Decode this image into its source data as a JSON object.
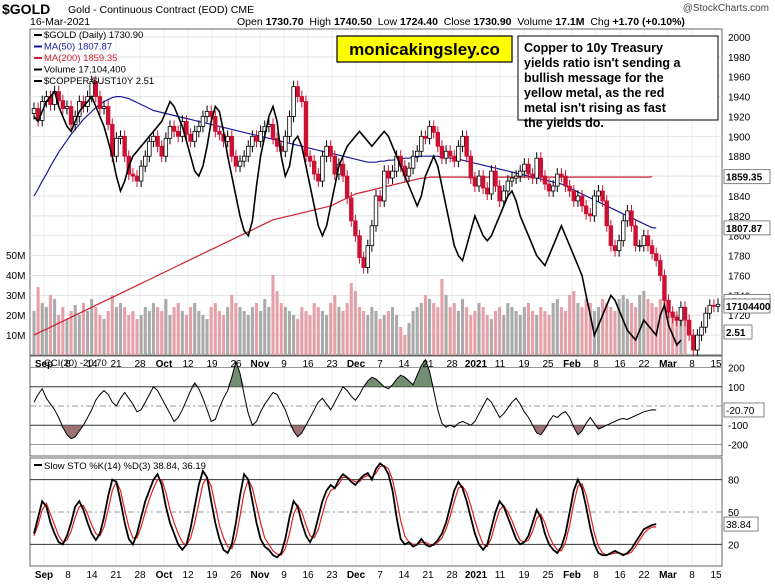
{
  "header": {
    "symbol": "$GOLD",
    "description": "Gold - Continuous Contract (EOD) CME",
    "date": "16-Mar-2021",
    "open_label": "Open",
    "open": "1730.70",
    "high_label": "High",
    "high": "1740.50",
    "low_label": "Low",
    "low": "1724.40",
    "close_label": "Close",
    "close": "1730.90",
    "vol_label": "Volume",
    "vol": "17.1M",
    "chg_label": "Chg",
    "chg": "+1.70 (+0.10%)",
    "watermark": "@StockCharts.com"
  },
  "colors": {
    "up": "#000000",
    "down": "#cc1133",
    "ma50": "#1a1a99",
    "ma200": "#cc2233",
    "ratio": "#000000",
    "vol_up": "#aaaaaa",
    "vol_down": "#e6a1a8",
    "cci_fill_pos": "#5a7a5a",
    "cci_fill_neg": "#8a5a5a",
    "sto_d": "#dd2222",
    "annot_bg": "#ffff00"
  },
  "annotation": {
    "brand": "monicakingsley.co",
    "note": "Copper to 10y Treasury yields ratio isn't sending a bullish message for the yellow metal, as the red metal isn't rising as fast the yields do."
  },
  "chart_data": [
    {
      "type": "candlestick",
      "title": "$GOLD (Daily) 1730.90",
      "legend": [
        "$GOLD (Daily) 1730.90",
        "MA(50) 1807.87",
        "MA(200) 1859.35",
        "Volume 17,104,400",
        "$COPPER:$UST10Y 2.51"
      ],
      "y_ticks": [
        1700,
        1720,
        1740,
        1760,
        1780,
        1800,
        1820,
        1840,
        1860,
        1880,
        1900,
        1920,
        1940,
        1960,
        1980,
        2000
      ],
      "ylim": [
        1680,
        2008
      ],
      "vol_ticks": [
        "10M",
        "20M",
        "30M",
        "40M",
        "50M"
      ],
      "vol_max": 50,
      "last_labels": {
        "close": "1730.90",
        "ma50": "1807.87",
        "ma200": "1859.35",
        "volume": "17104400",
        "ratio": "2.51"
      },
      "x_ticks": [
        "Sep",
        "8",
        "14",
        "21",
        "28",
        "Oct",
        "12",
        "19",
        "26",
        "Nov",
        "9",
        "16",
        "23",
        "Dec",
        "7",
        "14",
        "21",
        "28",
        "2021",
        "11",
        "19",
        "25",
        "Feb",
        "8",
        "16",
        "22",
        "Mar",
        "8",
        "15"
      ],
      "closes": [
        1928,
        1916,
        1935,
        1940,
        1932,
        1945,
        1936,
        1928,
        1930,
        1912,
        1920,
        1935,
        1930,
        1940,
        1955,
        1940,
        1928,
        1930,
        1912,
        1880,
        1898,
        1900,
        1880,
        1862,
        1860,
        1855,
        1870,
        1880,
        1895,
        1900,
        1890,
        1880,
        1898,
        1910,
        1905,
        1900,
        1915,
        1902,
        1895,
        1905,
        1910,
        1920,
        1925,
        1920,
        1905,
        1902,
        1895,
        1900,
        1880,
        1870,
        1875,
        1880,
        1890,
        1900,
        1895,
        1905,
        1910,
        1912,
        1898,
        1890,
        1885,
        1900,
        1920,
        1950,
        1940,
        1935,
        1880,
        1875,
        1862,
        1855,
        1880,
        1890,
        1880,
        1862,
        1872,
        1860,
        1838,
        1815,
        1800,
        1778,
        1768,
        1790,
        1810,
        1840,
        1835,
        1865,
        1858,
        1865,
        1880,
        1870,
        1860,
        1868,
        1880,
        1885,
        1900,
        1898,
        1910,
        1904,
        1890,
        1878,
        1885,
        1880,
        1875,
        1890,
        1900,
        1880,
        1858,
        1850,
        1860,
        1848,
        1842,
        1865,
        1850,
        1835,
        1845,
        1855,
        1858,
        1860,
        1865,
        1872,
        1862,
        1858,
        1878,
        1860,
        1852,
        1845,
        1850,
        1862,
        1860,
        1850,
        1845,
        1835,
        1840,
        1830,
        1822,
        1820,
        1840,
        1845,
        1835,
        1810,
        1790,
        1785,
        1795,
        1815,
        1825,
        1810,
        1790,
        1790,
        1800,
        1790,
        1782,
        1775,
        1760,
        1735,
        1723,
        1718,
        1715,
        1728,
        1715,
        1700,
        1685,
        1700,
        1708,
        1722,
        1730,
        1729,
        1731
      ],
      "volumes": [
        22,
        34,
        26,
        24,
        30,
        28,
        20,
        24,
        18,
        22,
        25,
        20,
        26,
        22,
        28,
        24,
        20,
        18,
        22,
        30,
        24,
        26,
        24,
        20,
        22,
        18,
        20,
        24,
        22,
        26,
        24,
        22,
        28,
        20,
        24,
        26,
        22,
        20,
        24,
        26,
        22,
        20,
        18,
        24,
        26,
        22,
        20,
        24,
        30,
        26,
        24,
        22,
        20,
        24,
        26,
        22,
        28,
        24,
        40,
        32,
        26,
        24,
        22,
        20,
        18,
        24,
        22,
        20,
        26,
        24,
        22,
        20,
        26,
        30,
        24,
        22,
        26,
        36,
        32,
        24,
        22,
        20,
        24,
        22,
        18,
        20,
        22,
        24,
        20,
        14,
        10,
        16,
        22,
        24,
        26,
        30,
        28,
        26,
        24,
        38,
        30,
        24,
        26,
        22,
        28,
        24,
        20,
        22,
        26,
        24,
        20,
        18,
        22,
        24,
        20,
        26,
        24,
        22,
        20,
        24,
        26,
        22,
        20,
        24,
        22,
        20,
        26,
        28,
        24,
        22,
        30,
        32,
        26,
        24,
        28,
        26,
        22,
        24,
        28,
        26,
        24,
        22,
        28,
        30,
        28,
        26,
        24,
        30,
        32,
        28,
        26,
        24,
        28,
        30,
        26,
        22,
        20,
        18,
        17
      ],
      "ma50": [
        1840,
        1847,
        1855,
        1862,
        1870,
        1877,
        1884,
        1890,
        1896,
        1902,
        1907,
        1912,
        1917,
        1921,
        1925,
        1929,
        1932,
        1935,
        1937,
        1939,
        1940,
        1940,
        1939,
        1938,
        1936,
        1934,
        1932,
        1930,
        1928,
        1926,
        1925,
        1924,
        1923,
        1922,
        1921,
        1920,
        1919,
        1918,
        1917,
        1916,
        1915,
        1914,
        1913,
        1912,
        1911,
        1910,
        1909,
        1908,
        1907,
        1906,
        1905,
        1904,
        1903,
        1902,
        1901,
        1900,
        1899,
        1898,
        1897,
        1896,
        1895,
        1894,
        1893,
        1892,
        1891,
        1890,
        1889,
        1888,
        1887,
        1886,
        1885,
        1884,
        1883,
        1882,
        1881,
        1880,
        1879,
        1878,
        1877,
        1876,
        1875,
        1874,
        1874,
        1874,
        1875,
        1875,
        1876,
        1876,
        1877,
        1877,
        1878,
        1878,
        1879,
        1879,
        1880,
        1880,
        1880,
        1880,
        1880,
        1879,
        1879,
        1878,
        1878,
        1877,
        1876,
        1875,
        1874,
        1873,
        1872,
        1871,
        1870,
        1869,
        1868,
        1867,
        1866,
        1865,
        1864,
        1863,
        1862,
        1861,
        1860,
        1859,
        1858,
        1857,
        1856,
        1855,
        1854,
        1853,
        1852,
        1850,
        1848,
        1846,
        1844,
        1842,
        1840,
        1838,
        1836,
        1834,
        1832,
        1830,
        1828,
        1826,
        1824,
        1822,
        1820,
        1818,
        1816,
        1814,
        1812,
        1810,
        1808,
        1807.87
      ],
      "ma200": [
        1700,
        1702,
        1704,
        1706,
        1708,
        1710,
        1712,
        1714,
        1716,
        1718,
        1720,
        1722,
        1724,
        1726,
        1728,
        1730,
        1732,
        1734,
        1736,
        1738,
        1740,
        1742,
        1744,
        1746,
        1748,
        1750,
        1752,
        1754,
        1756,
        1758,
        1760,
        1762,
        1764,
        1766,
        1768,
        1770,
        1772,
        1774,
        1776,
        1778,
        1780,
        1782,
        1784,
        1786,
        1788,
        1790,
        1792,
        1794,
        1796,
        1798,
        1800,
        1802,
        1804,
        1806,
        1808,
        1810,
        1812,
        1814,
        1816,
        1817,
        1818,
        1819,
        1820,
        1821,
        1822,
        1823,
        1824,
        1825,
        1826,
        1827,
        1828,
        1829,
        1830,
        1832,
        1834,
        1836,
        1838,
        1840,
        1842,
        1843,
        1844,
        1845,
        1846,
        1847,
        1848,
        1849,
        1850,
        1851,
        1852,
        1853,
        1854,
        1855,
        1856,
        1857,
        1858,
        1858,
        1859,
        1859,
        1859,
        1859,
        1859,
        1859,
        1859,
        1859,
        1859,
        1859,
        1859,
        1859,
        1859,
        1859,
        1859,
        1859,
        1859,
        1859,
        1859,
        1859,
        1859,
        1859,
        1859,
        1859,
        1859,
        1859,
        1859,
        1859,
        1859,
        1859,
        1859,
        1859,
        1859,
        1859,
        1859,
        1859,
        1859,
        1859,
        1859,
        1859,
        1859,
        1859,
        1859,
        1859,
        1859,
        1859,
        1859,
        1859,
        1859,
        1859,
        1859,
        1859,
        1859,
        1859,
        1859.35
      ],
      "ratio": [
        1920,
        1915,
        1925,
        1935,
        1940,
        1945,
        1930,
        1920,
        1910,
        1905,
        1915,
        1925,
        1930,
        1935,
        1940,
        1930,
        1920,
        1910,
        1895,
        1880,
        1860,
        1845,
        1855,
        1870,
        1880,
        1885,
        1890,
        1895,
        1900,
        1905,
        1910,
        1915,
        1925,
        1935,
        1930,
        1920,
        1910,
        1895,
        1880,
        1865,
        1860,
        1870,
        1890,
        1915,
        1930,
        1925,
        1905,
        1880,
        1860,
        1840,
        1820,
        1805,
        1800,
        1815,
        1850,
        1880,
        1900,
        1920,
        1930,
        1915,
        1880,
        1860,
        1870,
        1895,
        1900,
        1890,
        1870,
        1850,
        1830,
        1810,
        1800,
        1810,
        1830,
        1850,
        1870,
        1880,
        1890,
        1895,
        1900,
        1905,
        1900,
        1895,
        1890,
        1895,
        1900,
        1905,
        1900,
        1890,
        1880,
        1870,
        1860,
        1850,
        1840,
        1830,
        1840,
        1860,
        1870,
        1880,
        1870,
        1850,
        1830,
        1810,
        1790,
        1780,
        1775,
        1790,
        1805,
        1820,
        1810,
        1800,
        1795,
        1800,
        1810,
        1820,
        1830,
        1840,
        1845,
        1835,
        1820,
        1810,
        1800,
        1790,
        1780,
        1775,
        1770,
        1780,
        1790,
        1800,
        1810,
        1800,
        1790,
        1780,
        1770,
        1760,
        1740,
        1720,
        1700,
        1710,
        1720,
        1730,
        1740,
        1735,
        1725,
        1715,
        1705,
        1700,
        1695,
        1705,
        1715,
        1710,
        1705,
        1700,
        1720,
        1730,
        1710,
        1700,
        1690,
        1695
      ]
    },
    {
      "type": "line",
      "title": "CCI(20) -20.70",
      "y_ticks": [
        200,
        100,
        0,
        -100,
        -200
      ],
      "ylim": [
        -260,
        260
      ],
      "last_label": "-20.70",
      "values": [
        20,
        60,
        90,
        40,
        10,
        -20,
        -60,
        -110,
        -150,
        -170,
        -160,
        -130,
        -100,
        -60,
        -20,
        30,
        60,
        80,
        60,
        20,
        0,
        40,
        70,
        40,
        10,
        -30,
        -20,
        20,
        60,
        100,
        80,
        40,
        0,
        -40,
        -80,
        -60,
        -20,
        30,
        80,
        120,
        90,
        40,
        -20,
        -80,
        -70,
        -10,
        40,
        80,
        150,
        230,
        170,
        60,
        -40,
        -100,
        -80,
        -30,
        10,
        40,
        70,
        60,
        20,
        -20,
        -80,
        -130,
        -160,
        -140,
        -100,
        -60,
        -20,
        20,
        40,
        10,
        -20,
        20,
        60,
        100,
        80,
        50,
        30,
        60,
        100,
        130,
        150,
        140,
        120,
        100,
        90,
        110,
        140,
        160,
        150,
        130,
        110,
        160,
        210,
        240,
        180,
        80,
        -20,
        -90,
        -110,
        -100,
        -110,
        -90,
        -80,
        -90,
        -100,
        -80,
        -40,
        0,
        40,
        20,
        -20,
        -60,
        -40,
        -10,
        20,
        40,
        10,
        -30,
        -60,
        -100,
        -140,
        -150,
        -120,
        -80,
        -50,
        -60,
        -40,
        -30,
        -60,
        -110,
        -150,
        -130,
        -90,
        -60,
        -90,
        -120,
        -110,
        -100,
        -90,
        -80,
        -70,
        -65,
        -70,
        -60,
        -50,
        -40,
        -30,
        -25,
        -20,
        -20.7
      ]
    },
    {
      "type": "line",
      "title": "Slow STO %K(14) %D(3) 38.84, 36.19",
      "y_ticks": [
        80,
        50,
        20
      ],
      "ylim": [
        0,
        100
      ],
      "last_label": "38.84",
      "k": [
        30,
        45,
        60,
        55,
        40,
        30,
        22,
        20,
        28,
        40,
        55,
        60,
        52,
        40,
        30,
        24,
        30,
        45,
        65,
        80,
        78,
        60,
        40,
        25,
        20,
        30,
        45,
        60,
        70,
        80,
        85,
        75,
        55,
        40,
        30,
        20,
        15,
        20,
        35,
        55,
        75,
        88,
        82,
        60,
        40,
        25,
        15,
        12,
        20,
        40,
        65,
        85,
        80,
        60,
        40,
        25,
        18,
        15,
        10,
        8,
        12,
        25,
        45,
        60,
        55,
        40,
        28,
        22,
        30,
        45,
        60,
        70,
        75,
        72,
        80,
        85,
        82,
        78,
        75,
        80,
        84,
        86,
        80,
        90,
        95,
        92,
        85,
        70,
        45,
        25,
        20,
        22,
        18,
        20,
        25,
        20,
        18,
        20,
        24,
        30,
        40,
        55,
        70,
        78,
        72,
        60,
        45,
        30,
        20,
        15,
        20,
        35,
        50,
        60,
        55,
        45,
        35,
        25,
        20,
        22,
        28,
        40,
        52,
        45,
        30,
        20,
        15,
        12,
        18,
        30,
        50,
        70,
        80,
        72,
        55,
        35,
        20,
        12,
        10,
        10,
        12,
        14,
        12,
        10,
        12,
        16,
        22,
        28,
        34,
        36,
        38,
        38.84
      ],
      "d": [
        28,
        38,
        52,
        58,
        48,
        38,
        28,
        22,
        24,
        32,
        45,
        55,
        56,
        48,
        38,
        30,
        28,
        36,
        52,
        70,
        78,
        70,
        52,
        36,
        26,
        26,
        36,
        50,
        62,
        72,
        80,
        80,
        68,
        52,
        40,
        30,
        22,
        19,
        26,
        40,
        58,
        76,
        82,
        74,
        56,
        38,
        26,
        18,
        16,
        26,
        46,
        68,
        80,
        72,
        56,
        40,
        26,
        20,
        14,
        11,
        10,
        16,
        30,
        48,
        56,
        50,
        38,
        28,
        26,
        34,
        48,
        62,
        70,
        72,
        76,
        82,
        82,
        80,
        78,
        78,
        82,
        84,
        82,
        86,
        92,
        93,
        90,
        80,
        62,
        42,
        28,
        22,
        20,
        20,
        22,
        22,
        20,
        19,
        22,
        26,
        34,
        46,
        60,
        72,
        74,
        68,
        56,
        42,
        30,
        20,
        18,
        26,
        40,
        52,
        56,
        50,
        42,
        32,
        24,
        22,
        24,
        32,
        44,
        48,
        40,
        28,
        20,
        15,
        14,
        22,
        38,
        58,
        74,
        76,
        66,
        48,
        30,
        18,
        12,
        10,
        11,
        12,
        12,
        11,
        11,
        13,
        18,
        24,
        30,
        34,
        36,
        36.19
      ]
    }
  ]
}
